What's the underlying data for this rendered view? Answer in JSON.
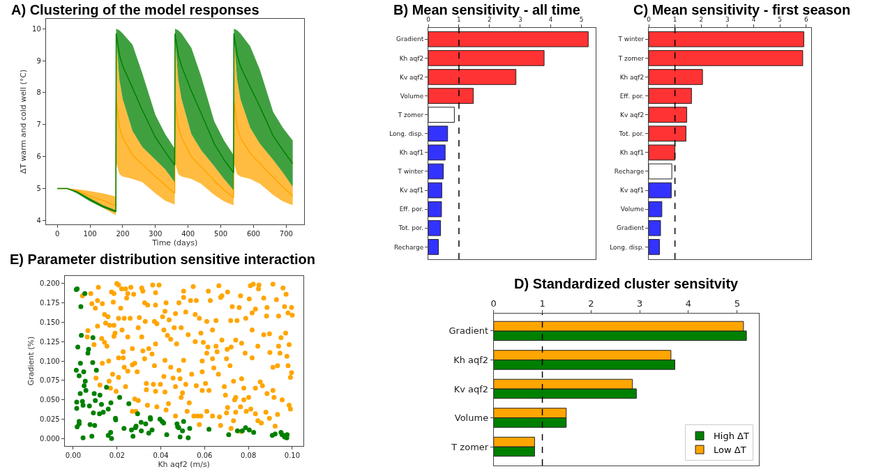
{
  "chart_data": [
    {
      "type": "line",
      "title": "A) Clustering of the model responses",
      "xlabel": "Time (days)",
      "ylabel": "ΔT warm and cold well (°C)",
      "xlim": [
        -35,
        754
      ],
      "xticks": [
        0,
        100,
        200,
        300,
        400,
        500,
        600,
        700
      ],
      "ylim": [
        3.88,
        10.31
      ],
      "yticks": [
        4,
        5,
        6,
        7,
        8,
        9,
        10
      ],
      "series": [
        {
          "color": "#ffa500",
          "x": [
            0,
            30,
            60,
            100,
            140,
            179,
            180,
            190,
            200,
            230,
            260,
            300,
            330,
            359,
            360,
            370,
            380,
            410,
            440,
            480,
            510,
            539,
            540,
            550,
            560,
            590,
            620,
            660,
            690,
            720
          ],
          "values": [
            5,
            5,
            4.93,
            4.77,
            4.63,
            4.46,
            7.75,
            6.93,
            6.59,
            6.05,
            5.75,
            5.38,
            5.11,
            4.85,
            7.75,
            6.93,
            6.59,
            6.0,
            5.68,
            5.25,
            4.95,
            4.72,
            7.75,
            6.93,
            6.59,
            6.1,
            5.78,
            5.35,
            5.05,
            4.77
          ],
          "upper": [
            5,
            5,
            4.98,
            4.92,
            4.85,
            4.75,
            9.7,
            8.4,
            7.8,
            6.8,
            6.3,
            5.9,
            5.6,
            5.2,
            9.7,
            8.4,
            7.8,
            6.7,
            6.2,
            5.7,
            5.3,
            4.95,
            9.7,
            8.4,
            7.8,
            6.9,
            6.4,
            5.9,
            5.5,
            5.05
          ],
          "lower": [
            5,
            5,
            4.88,
            4.62,
            4.4,
            4.17,
            5.8,
            5.45,
            5.38,
            5.3,
            5.2,
            4.85,
            4.62,
            4.5,
            5.8,
            5.45,
            5.38,
            5.3,
            5.15,
            4.8,
            4.6,
            4.48,
            5.8,
            5.45,
            5.38,
            5.3,
            5.15,
            4.8,
            4.6,
            4.48
          ]
        },
        {
          "color": "#008000",
          "x": [
            0,
            30,
            60,
            100,
            140,
            179,
            180,
            190,
            200,
            230,
            260,
            300,
            330,
            359,
            360,
            370,
            380,
            410,
            440,
            480,
            510,
            539,
            540,
            550,
            560,
            590,
            620,
            660,
            690,
            720
          ],
          "values": [
            5,
            5,
            4.89,
            4.65,
            4.44,
            4.29,
            9.85,
            9.18,
            8.83,
            8.15,
            7.45,
            6.6,
            6.15,
            5.73,
            9.85,
            9.18,
            8.83,
            8.05,
            7.35,
            6.4,
            5.9,
            5.5,
            9.85,
            9.18,
            8.83,
            8.18,
            7.55,
            6.65,
            6.2,
            5.78
          ],
          "upper": [
            5,
            5,
            4.92,
            4.7,
            4.48,
            4.32,
            10,
            9.95,
            9.85,
            9.5,
            8.6,
            7.3,
            6.7,
            6.25,
            10,
            9.95,
            9.85,
            9.4,
            8.5,
            7.1,
            6.5,
            6.05,
            10,
            9.95,
            9.85,
            9.45,
            8.7,
            7.4,
            6.9,
            6.5
          ],
          "lower": [
            5,
            5,
            4.85,
            4.6,
            4.4,
            4.25,
            9.7,
            8.4,
            7.8,
            6.8,
            6.3,
            5.9,
            5.6,
            5.2,
            9.7,
            8.4,
            7.8,
            6.7,
            6.2,
            5.7,
            5.3,
            4.95,
            9.7,
            8.4,
            7.8,
            6.9,
            6.4,
            5.9,
            5.5,
            5.05
          ]
        }
      ]
    },
    {
      "type": "bar",
      "orientation": "horizontal",
      "title": "B) Mean sensitivity - all time",
      "categories": [
        "Gradient",
        "Kh aqf2",
        "Kv aqf2",
        "Volume",
        "T zomer",
        "Long. disp.",
        "Kh aqf1",
        "T winter",
        "Kv aqf1",
        "Eff. por.",
        "Tot. por.",
        "Recharge"
      ],
      "values": [
        5.22,
        3.78,
        2.86,
        1.47,
        0.85,
        0.63,
        0.55,
        0.49,
        0.44,
        0.43,
        0.4,
        0.33
      ],
      "colors": [
        "#ff3333",
        "#ff3333",
        "#ff3333",
        "#ff3333",
        "#ffffff",
        "#3333ff",
        "#3333ff",
        "#3333ff",
        "#3333ff",
        "#3333ff",
        "#3333ff",
        "#3333ff"
      ],
      "xlim": [
        0,
        5.47
      ],
      "xticks": [
        0,
        1,
        2,
        3,
        4,
        5
      ],
      "ref_lines": [
        {
          "axis": "x",
          "value": 1,
          "color": "#000000",
          "line_style": "dashed"
        }
      ]
    },
    {
      "type": "bar",
      "orientation": "horizontal",
      "title": "C) Mean sensitivity - first season",
      "categories": [
        "T winter",
        "T zomer",
        "Kh aqf2",
        "Eff. por.",
        "Kv aqf2",
        "Tot. por.",
        "Kh aqf1",
        "Recharge",
        "Kv aqf1",
        "Volume",
        "Gradient",
        "Long. disp."
      ],
      "values": [
        5.91,
        5.87,
        2.05,
        1.63,
        1.45,
        1.42,
        1.0,
        0.88,
        0.86,
        0.5,
        0.45,
        0.41
      ],
      "colors": [
        "#ff3333",
        "#ff3333",
        "#ff3333",
        "#ff3333",
        "#ff3333",
        "#ff3333",
        "#ff3333",
        "#ffffff",
        "#3333ff",
        "#3333ff",
        "#3333ff",
        "#3333ff"
      ],
      "xlim": [
        0,
        6.2
      ],
      "xticks": [
        0,
        1,
        2,
        3,
        4,
        5,
        6
      ],
      "ref_lines": [
        {
          "axis": "x",
          "value": 1,
          "color": "#000000",
          "line_style": "dashed"
        }
      ]
    },
    {
      "type": "scatter",
      "title": "E) Parameter distribution sensitive interaction",
      "xlabel": "Kh aqf2 (m/s)",
      "ylabel": "Gradient (%)",
      "marker": "circle",
      "xlim": [
        -0.0039,
        0.105
      ],
      "xticks": [
        {
          "value": 0,
          "label": "0.00"
        },
        {
          "value": 0.02,
          "label": "0.02"
        },
        {
          "value": 0.04,
          "label": "0.04"
        },
        {
          "value": 0.06,
          "label": "0.06"
        },
        {
          "value": 0.08,
          "label": "0.08"
        },
        {
          "value": 0.1,
          "label": "0.10"
        }
      ],
      "ylim": [
        -0.0096,
        0.2096
      ],
      "yticks": [
        {
          "value": 0,
          "label": "0.000"
        },
        {
          "value": 0.025,
          "label": "0.025"
        },
        {
          "value": 0.05,
          "label": "0.050"
        },
        {
          "value": 0.075,
          "label": "0.075"
        },
        {
          "value": 0.1,
          "label": "0.100"
        },
        {
          "value": 0.125,
          "label": "0.125"
        },
        {
          "value": 0.15,
          "label": "0.150"
        },
        {
          "value": 0.175,
          "label": "0.175"
        },
        {
          "value": 0.2,
          "label": "0.200"
        }
      ],
      "series": [
        {
          "color": "#ffa500",
          "x": [
            0.0115,
            0.0175,
            0.0199,
            0.0207,
            0.0221,
            0.0239,
            0.0263,
            0.0313,
            0.0318,
            0.0363,
            0.0392,
            0.0548,
            0.0617,
            0.0665,
            0.0705,
            0.0809,
            0.0822,
            0.0848,
            0.0846,
            0.0912,
            0.0958,
            0.0972,
            0.0042,
            0.008,
            0.0186,
            0.0249,
            0.0276,
            0.0376,
            0.0504,
            0.0679,
            0.0764,
            0.0928,
            0.0085,
            0.0111,
            0.0133,
            0.0101,
            0.0183,
            0.0217,
            0.0244,
            0.0326,
            0.034,
            0.0376,
            0.0424,
            0.0483,
            0.0504,
            0.0536,
            0.0562,
            0.0626,
            0.0673,
            0.0726,
            0.0758,
            0.0804,
            0.0832,
            0.087,
            0.0885,
            0.0965,
            0.0997,
            0.0981,
            0.1,
            0.0938,
            0.0883,
            0.0817,
            0.0788,
            0.0748,
            0.0719,
            0.0652,
            0.061,
            0.0576,
            0.0557,
            0.0514,
            0.0467,
            0.0438,
            0.0419,
            0.0408,
            0.0371,
            0.0329,
            0.0302,
            0.026,
            0.0233,
            0.0207,
            0.0159,
            0.0143,
            0.0148,
            0.0166,
            0.0111,
            0.0186,
            0.0067,
            0.0064,
            0.0095,
            0.013,
            0.0143,
            0.0154,
            0.0191,
            0.0186,
            0.0223,
            0.0249,
            0.027,
            0.0297,
            0.0313,
            0.0318,
            0.0326,
            0.0345,
            0.036,
            0.0376,
            0.0382,
            0.0414,
            0.043,
            0.0445,
            0.0472,
            0.0461,
            0.0493,
            0.0525,
            0.0557,
            0.0583,
            0.0594,
            0.061,
            0.0615,
            0.0636,
            0.0652,
            0.0657,
            0.0679,
            0.0703,
            0.0721,
            0.0742,
            0.0769,
            0.0785,
            0.0817,
            0.0843,
            0.087,
            0.0896,
            0.0898,
            0.0938,
            0.0944,
            0.0949,
            0.097,
            0.0986,
            0.0976,
            0.0817,
            0.07,
            0.0636,
            0.0589,
            0.0504,
            0.0419,
            0.0228,
            0.0207,
            0.0162,
            0.0228,
            0.0133,
            0.0104,
            0.0122,
            0.0164,
            0.017,
            0.018,
            0.0196,
            0.0207,
            0.0233,
            0.0249,
            0.027,
            0.0281,
            0.0292,
            0.0239,
            0.0334,
            0.0334,
            0.0366,
            0.0376,
            0.0371,
            0.0398,
            0.0414,
            0.0419,
            0.0445,
            0.0456,
            0.0467,
            0.0483,
            0.0488,
            0.0499,
            0.0493,
            0.0514,
            0.0541,
            0.0562,
            0.0589,
            0.0589,
            0.0604,
            0.062,
            0.0642,
            0.0663,
            0.069,
            0.0695,
            0.0716,
            0.0732,
            0.0742,
            0.0769,
            0.0779,
            0.0801,
            0.0832,
            0.0854,
            0.0864,
            0.0885,
            0.0912,
            0.0917,
            0.0912,
            0.0933,
            0.0981,
            0.0992,
            0.0997,
            0.0281,
            0.0297,
            0.0339,
            0.0382,
            0.0424,
            0.0435,
            0.027,
            0.0286,
            0.0467,
            0.052,
            0.053,
            0.0551,
            0.0567,
            0.0583,
            0.061,
            0.0636,
            0.0668,
            0.0673,
            0.07,
            0.0705,
            0.0732,
            0.0721,
            0.0737,
            0.0742,
            0.0764,
            0.0779,
            0.079,
            0.0811,
            0.0832,
            0.0843,
            0.0859,
            0.088,
            0.0896,
            0.0922,
            0.0933,
            0.0954,
            0.0986,
            0.0992,
            0.0766,
            0.0576
          ],
          "values": [
            0.195,
            0.189,
            0.2,
            0.198,
            0.193,
            0.193,
            0.195,
            0.194,
            0.19,
            0.198,
            0.198,
            0.196,
            0.19,
            0.197,
            0.189,
            0.197,
            0.199,
            0.198,
            0.193,
            0.199,
            0.194,
            0.186,
            0.184,
            0.187,
            0.187,
            0.187,
            0.186,
            0.188,
            0.19,
            0.184,
            0.184,
            0.179,
            0.174,
            0.178,
            0.174,
            0.168,
            0.176,
            0.168,
            0.181,
            0.175,
            0.172,
            0.172,
            0.175,
            0.175,
            0.182,
            0.178,
            0.178,
            0.178,
            0.182,
            0.17,
            0.169,
            0.18,
            0.167,
            0.181,
            0.169,
            0.17,
            0.169,
            0.162,
            0.159,
            0.158,
            0.158,
            0.162,
            0.155,
            0.152,
            0.152,
            0.152,
            0.151,
            0.155,
            0.16,
            0.163,
            0.161,
            0.153,
            0.164,
            0.157,
            0.151,
            0.151,
            0.156,
            0.155,
            0.155,
            0.155,
            0.157,
            0.16,
            0.149,
            0.146,
            0.145,
            0.146,
            0.139,
            0.131,
            0.121,
            0.129,
            0.124,
            0.119,
            0.136,
            0.132,
            0.14,
            0.131,
            0.116,
            0.143,
            0.131,
            0.113,
            0.103,
            0.116,
            0.109,
            0.122,
            0.148,
            0.14,
            0.133,
            0.128,
            0.122,
            0.143,
            0.143,
            0.134,
            0.125,
            0.136,
            0.124,
            0.11,
            0.118,
            0.14,
            0.119,
            0.112,
            0.127,
            0.115,
            0.118,
            0.127,
            0.123,
            0.11,
            0.14,
            0.119,
            0.134,
            0.135,
            0.111,
            0.119,
            0.11,
            0.13,
            0.136,
            0.121,
            0.106,
            0.104,
            0.103,
            0.103,
            0.1,
            0.101,
            0.101,
            0.104,
            0.104,
            0.1,
            0.112,
            0.097,
            0.078,
            0.069,
            0.074,
            0.065,
            0.083,
            0.061,
            0.079,
            0.092,
            0.087,
            0.095,
            0.097,
            0.086,
            0.067,
            0.071,
            0.063,
            0.07,
            0.061,
            0.094,
            0.07,
            0.08,
            0.06,
            0.092,
            0.078,
            0.067,
            0.088,
            0.077,
            0.059,
            0.053,
            0.07,
            0.083,
            0.068,
            0.086,
            0.062,
            0.071,
            0.062,
            0.091,
            0.083,
            0.067,
            0.056,
            0.094,
            0.074,
            0.053,
            0.077,
            0.065,
            0.053,
            0.065,
            0.073,
            0.068,
            0.058,
            0.062,
            0.053,
            0.092,
            0.094,
            0.094,
            0.079,
            0.085,
            0.051,
            0.049,
            0.043,
            0.041,
            0.037,
            0.045,
            0.035,
            0.035,
            0.029,
            0.035,
            0.046,
            0.029,
            0.029,
            0.029,
            0.035,
            0.029,
            0.028,
            0.017,
            0.033,
            0.04,
            0.023,
            0.013,
            0.05,
            0.034,
            0.041,
            0.05,
            0.035,
            0.038,
            0.032,
            0.023,
            0.02,
            0.034,
            0.026,
            0.016,
            0.031,
            0.05,
            0.043,
            0.038,
            0.009,
            0.018
          ]
        },
        {
          "color": "#008000",
          "x": [
            0.0014,
            0.0018,
            0.0053,
            0.0035,
            0.0037,
            0.0021,
            0.009,
            0.007,
            0.0067,
            0.0033,
            0.0089,
            0.0014,
            0.0048,
            0.0106,
            0.0027,
            0.0055,
            0.005,
            0.0152,
            0.0058,
            0.0032,
            0.0096,
            0.0122,
            0.0016,
            0.0042,
            0.0101,
            0.0045,
            0.0129,
            0.0172,
            0.0212,
            0.0016,
            0.0074,
            0.016,
            0.0092,
            0.012,
            0.0137,
            0.0254,
            0.0294,
            0.0027,
            0.0027,
            0.0018,
            0.0193,
            0.0194,
            0.0077,
            0.0098,
            0.0045,
            0.0085,
            0.016,
            0.0171,
            0.0175,
            0.0232,
            0.0266,
            0.0273,
            0.0284,
            0.0287,
            0.031,
            0.0311,
            0.0331,
            0.0345,
            0.0353,
            0.036,
            0.0352,
            0.0396,
            0.0406,
            0.0413,
            0.0427,
            0.0474,
            0.0477,
            0.0482,
            0.0488,
            0.0499,
            0.0504,
            0.0525,
            0.0532,
            0.062,
            0.071,
            0.075,
            0.0772,
            0.0787,
            0.0804,
            0.0824,
            0.0909,
            0.0922,
            0.0949,
            0.0954,
            0.0965,
            0.097,
            0.0977,
            0.0975
          ],
          "values": [
            0.192,
            0.193,
            0.187,
            0.17,
            0.133,
            0.118,
            0.13,
            0.115,
            0.11,
            0.097,
            0.098,
            0.088,
            0.086,
            0.088,
            0.081,
            0.074,
            0.068,
            0.066,
            0.062,
            0.058,
            0.058,
            0.056,
            0.047,
            0.048,
            0.049,
            0.043,
            0.044,
            0.046,
            0.053,
            0.039,
            0.042,
            0.038,
            0.033,
            0.032,
            0.034,
            0.045,
            0.032,
            0.022,
            0.019,
            0.015,
            0.026,
            0.024,
            0.018,
            0.017,
            0.001,
            0.003,
            0.004,
            0.008,
            0.0,
            0.013,
            0.011,
            0.003,
            0.014,
            0.016,
            0.021,
            0.01,
            0.019,
            0.007,
            0.025,
            0.011,
            0.027,
            0.025,
            0.022,
            0.02,
            0.005,
            0.019,
            0.015,
            0.014,
            0.002,
            0.01,
            0.022,
            0.001,
            0.013,
            0.012,
            0.005,
            0.01,
            0.01,
            0.014,
            0.011,
            0.008,
            0.004,
            0.006,
            0.008,
            0.005,
            0.002,
            0.004,
            0.005,
            0.001
          ]
        }
      ]
    },
    {
      "type": "bar",
      "orientation": "horizontal",
      "title": "D) Standardized cluster sensitvity",
      "categories": [
        "Gradient",
        "Kh aqf2",
        "Kv aqf2",
        "Volume",
        "T zomer"
      ],
      "legend": "bottom right",
      "xlim": [
        0,
        5.44
      ],
      "xticks": [
        0,
        1,
        2,
        3,
        4,
        5
      ],
      "ref_lines": [
        {
          "axis": "x",
          "value": 1,
          "color": "#000000",
          "line_style": "dashed"
        }
      ],
      "series": [
        {
          "name": "High ΔT",
          "color": "#008000",
          "values": [
            5.19,
            3.72,
            2.93,
            1.49,
            0.84
          ]
        },
        {
          "name": "Low ΔT",
          "color": "#ffa500",
          "values": [
            5.13,
            3.64,
            2.85,
            1.49,
            0.84
          ]
        }
      ]
    }
  ]
}
